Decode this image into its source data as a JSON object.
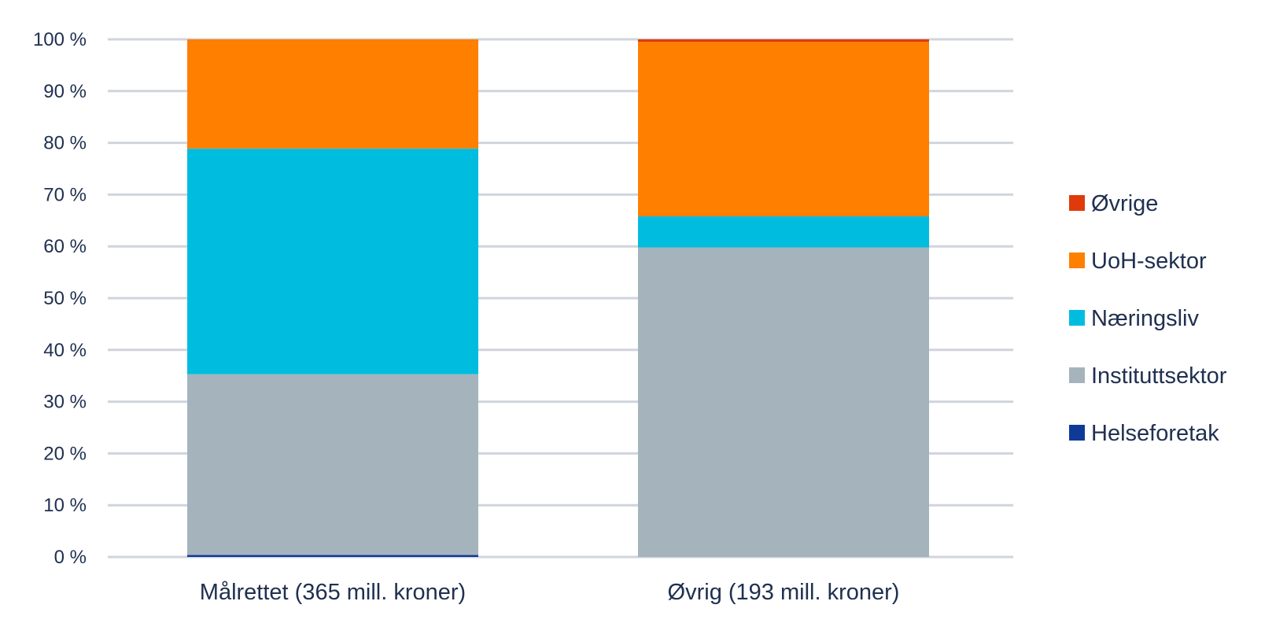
{
  "chart_data": {
    "type": "bar",
    "stacked": true,
    "categories": [
      "Målrettet (365 mill. kroner)",
      "Øvrig (193 mill. kroner)"
    ],
    "series": [
      {
        "name": "Helseforetak",
        "values": [
          0.4,
          0.0
        ]
      },
      {
        "name": "Instituttsektor",
        "values": [
          34.9,
          59.8
        ]
      },
      {
        "name": "Næringsliv",
        "values": [
          43.6,
          6.0
        ]
      },
      {
        "name": "UoH-sektor",
        "values": [
          21.1,
          33.7
        ]
      },
      {
        "name": "Øvrige",
        "values": [
          0.0,
          0.5
        ]
      }
    ],
    "colors": {
      "Helseforetak": "#0f3a97",
      "Instituttsektor": "#a5b4bc",
      "Næringsliv": "#00bde0",
      "UoH-sektor": "#ff7f00",
      "Øvrige": "#e03a0a"
    },
    "ylim": [
      0,
      100
    ],
    "yticks": [
      0,
      10,
      20,
      30,
      40,
      50,
      60,
      70,
      80,
      90,
      100
    ],
    "ytick_labels": [
      "0 %",
      "10 %",
      "20 %",
      "30 %",
      "40 %",
      "50 %",
      "60 %",
      "70 %",
      "80 %",
      "90 %",
      "100 %"
    ],
    "legend": {
      "placement": "right",
      "order": [
        "Øvrige",
        "UoH-sektor",
        "Næringsliv",
        "Instituttsektor",
        "Helseforetak"
      ]
    },
    "grid": true,
    "title": "",
    "xlabel": "",
    "ylabel": ""
  }
}
